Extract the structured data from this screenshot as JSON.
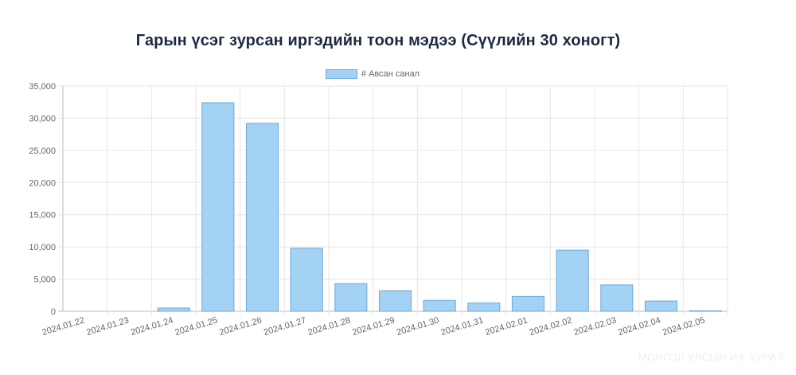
{
  "chart_data": {
    "type": "bar",
    "title": "Гарын үсэг зурсан иргэдийн тоон мэдээ (Сүүлийн 30 хоногт)",
    "categories": [
      "2024.01.22",
      "2024.01.23",
      "2024.01.24",
      "2024.01.25",
      "2024.01.26",
      "2024.01.27",
      "2024.01.28",
      "2024.01.29",
      "2024.01.30",
      "2024.01.31",
      "2024.02.01",
      "2024.02.02",
      "2024.02.03",
      "2024.02.04",
      "2024.02.05"
    ],
    "series": [
      {
        "name": "# Авсан санал",
        "values": [
          0,
          0,
          500,
          32400,
          29200,
          9800,
          4300,
          3200,
          1700,
          1300,
          2300,
          9500,
          4100,
          1600,
          80
        ]
      }
    ],
    "ylim": [
      0,
      35000
    ],
    "yticks": [
      0,
      5000,
      10000,
      15000,
      20000,
      25000,
      30000,
      35000
    ],
    "ytick_labels": [
      "0",
      "5,000",
      "10,000",
      "15,000",
      "20,000",
      "25,000",
      "30,000",
      "35,000"
    ],
    "xlabel": "",
    "ylabel": "",
    "legend_position": "top",
    "grid": true,
    "bar_color": "#a3d2f4",
    "bar_border_color": "#6aa9d8"
  },
  "watermark": "МОНГОЛ УЛСЫН ИХ ХУРАЛ"
}
